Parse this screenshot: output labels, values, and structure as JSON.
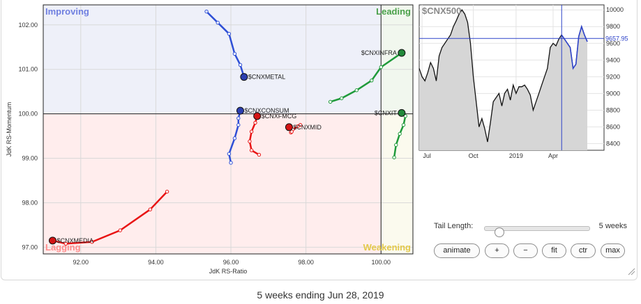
{
  "chart_data": [
    {
      "type": "scatter",
      "xlabel": "JdK RS-Ratio",
      "ylabel": "JdK RS-Momentum",
      "xlim": [
        91.0,
        100.85
      ],
      "ylim": [
        96.85,
        102.45
      ],
      "xticks": [
        92,
        94,
        96,
        98,
        100
      ],
      "xtick_labels": [
        "92.00",
        "94.00",
        "96.00",
        "98.00",
        "100.00"
      ],
      "yticks": [
        97,
        98,
        99,
        100,
        101,
        102
      ],
      "ytick_labels": [
        "97.00",
        "98.00",
        "99.00",
        "100.00",
        "101.00",
        "102.00"
      ],
      "center": [
        100,
        100
      ],
      "grid": true,
      "quadrants": [
        {
          "name": "Improving",
          "color": "#6f7fe0",
          "bg": "#eef0f9"
        },
        {
          "name": "Leading",
          "color": "#4aa04a",
          "bg": "#f1f7ee"
        },
        {
          "name": "Weakening",
          "color": "#e3c94a",
          "bg": "#fbfaee"
        },
        {
          "name": "Lagging",
          "color": "#ff8c8c",
          "bg": "#ffeded"
        }
      ],
      "series": [
        {
          "name": "$CNXMETAL",
          "color": "#2e4fd6",
          "head": "#2c3fb0",
          "x": [
            95.35,
            95.65,
            95.95,
            96.1,
            96.25,
            96.35
          ],
          "y": [
            102.3,
            102.05,
            101.8,
            101.35,
            101.1,
            100.83
          ]
        },
        {
          "name": "$CNXINFRA",
          "color": "#1f9a3a",
          "head": "#22893a",
          "x": [
            98.65,
            98.95,
            99.35,
            99.75,
            100.0,
            100.55
          ],
          "y": [
            100.27,
            100.35,
            100.53,
            100.75,
            101.05,
            101.37
          ]
        },
        {
          "name": "$CNXCONSUM",
          "color": "#2e4fd6",
          "head": "#2c3fb0",
          "x": [
            96.0,
            95.95,
            96.1,
            96.2,
            96.2,
            96.25
          ],
          "y": [
            98.9,
            99.1,
            99.45,
            99.75,
            99.9,
            100.07
          ]
        },
        {
          "name": "$CNXFMCG",
          "color": "#e81414",
          "head": "#d41414",
          "x": [
            96.75,
            96.55,
            96.5,
            96.55,
            96.65,
            96.7
          ],
          "y": [
            99.08,
            99.18,
            99.38,
            99.6,
            99.8,
            99.95
          ]
        },
        {
          "name": "$CNXMID",
          "color": "#e81414",
          "head": "#d41414",
          "x": [
            97.85,
            97.78,
            97.65,
            97.6,
            97.62,
            97.55
          ],
          "y": [
            99.75,
            99.72,
            99.65,
            99.58,
            99.6,
            99.7
          ]
        },
        {
          "name": "$CNXIT",
          "color": "#1f9a3a",
          "head": "#22893a",
          "x": [
            100.35,
            100.4,
            100.5,
            100.6,
            100.65,
            100.55
          ],
          "y": [
            99.02,
            99.3,
            99.55,
            99.75,
            99.95,
            100.02
          ]
        },
        {
          "name": "$CNXMEDIA",
          "color": "#e81414",
          "head": "#d41414",
          "x": [
            94.3,
            93.85,
            93.05,
            92.3,
            91.6,
            91.25
          ],
          "y": [
            98.25,
            97.85,
            97.38,
            97.12,
            97.08,
            97.15
          ]
        }
      ]
    },
    {
      "type": "line",
      "title": "$CNX500",
      "xtick_labels": [
        "Jul",
        "Oct",
        "2019",
        "Apr"
      ],
      "ylim": [
        8320,
        10060
      ],
      "yticks": [
        8400,
        8600,
        8800,
        9000,
        9200,
        9400,
        9600,
        9800,
        10000
      ],
      "ytick_labels": [
        "8400",
        "8600",
        "8800",
        "9000",
        "9200",
        "9400",
        "9600",
        "9800",
        "10000"
      ],
      "last_value_label": "9657.95",
      "last_value": 9657.95,
      "grid": true,
      "values": [
        9300,
        9200,
        9150,
        9250,
        9370,
        9300,
        9150,
        9450,
        9550,
        9600,
        9650,
        9700,
        9800,
        9870,
        9950,
        10000,
        9950,
        9850,
        9600,
        9200,
        8900,
        8600,
        8700,
        8580,
        8420,
        8650,
        8900,
        8950,
        9000,
        8850,
        9000,
        9050,
        8920,
        9100,
        9000,
        9080,
        9080,
        9100,
        9050,
        8980,
        8800,
        8900,
        9000,
        9100,
        9200,
        9300,
        9550,
        9600,
        9570,
        9650,
        9700,
        9650,
        9600,
        9550,
        9300,
        9350,
        9680,
        9800,
        9700,
        9620
      ]
    }
  ],
  "controls": {
    "tail_label": "Tail Length:",
    "tail_value": "5 weeks",
    "tail_fraction": 0.1,
    "buttons": [
      "animate",
      "+",
      "−",
      "fit",
      "ctr",
      "max"
    ]
  },
  "caption": "5 weeks ending Jun 28, 2019"
}
